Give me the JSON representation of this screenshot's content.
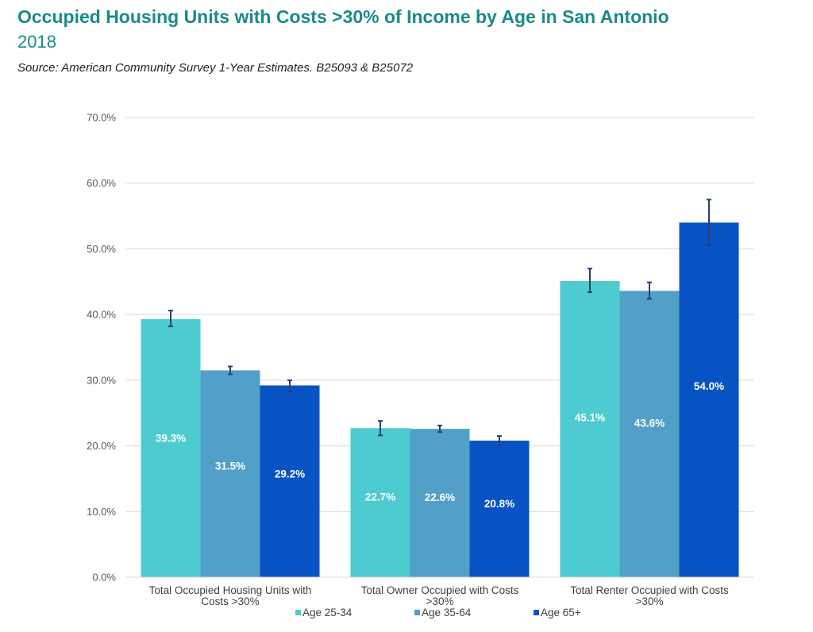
{
  "header": {
    "title": "Occupied Housing Units with Costs >30% of Income by Age in San Antonio",
    "subtitle": "2018",
    "source": "Source: American Community Survey 1-Year Estimates. B25093 & B25072"
  },
  "chart_data": {
    "type": "bar",
    "ylim": [
      0,
      70
    ],
    "yticks": [
      0,
      10,
      20,
      30,
      40,
      50,
      60,
      70
    ],
    "ytick_labels": [
      "0.0%",
      "10.0%",
      "20.0%",
      "30.0%",
      "40.0%",
      "50.0%",
      "60.0%",
      "70.0%"
    ],
    "grid": true,
    "legend_position": "bottom",
    "categories": [
      [
        "Total Occupied Housing Units with",
        "Costs >30%"
      ],
      [
        "Total Owner Occupied with Costs",
        ">30%"
      ],
      [
        "Total Renter Occupied with Costs",
        ">30%"
      ]
    ],
    "series": [
      {
        "name": "Age 25-34",
        "color": "#4ecbd0",
        "values": [
          39.3,
          22.7,
          45.1
        ],
        "labels": [
          "39.3%",
          "22.7%",
          "45.1%"
        ],
        "error": [
          [
            38.2,
            40.6
          ],
          [
            21.6,
            23.8
          ],
          [
            43.4,
            47.0
          ]
        ]
      },
      {
        "name": "Age 35-64",
        "color": "#52a0c8",
        "values": [
          31.5,
          22.6,
          43.6
        ],
        "labels": [
          "31.5%",
          "22.6%",
          "43.6%"
        ],
        "error": [
          [
            30.9,
            32.1
          ],
          [
            22.1,
            23.1
          ],
          [
            42.4,
            44.9
          ]
        ]
      },
      {
        "name": "Age 65+",
        "color": "#0753c4",
        "values": [
          29.2,
          20.8,
          54.0
        ],
        "labels": [
          "29.2%",
          "20.8%",
          "54.0%"
        ],
        "error": [
          [
            28.3,
            30.0
          ],
          [
            20.1,
            21.5
          ],
          [
            50.6,
            57.5
          ]
        ]
      }
    ]
  }
}
